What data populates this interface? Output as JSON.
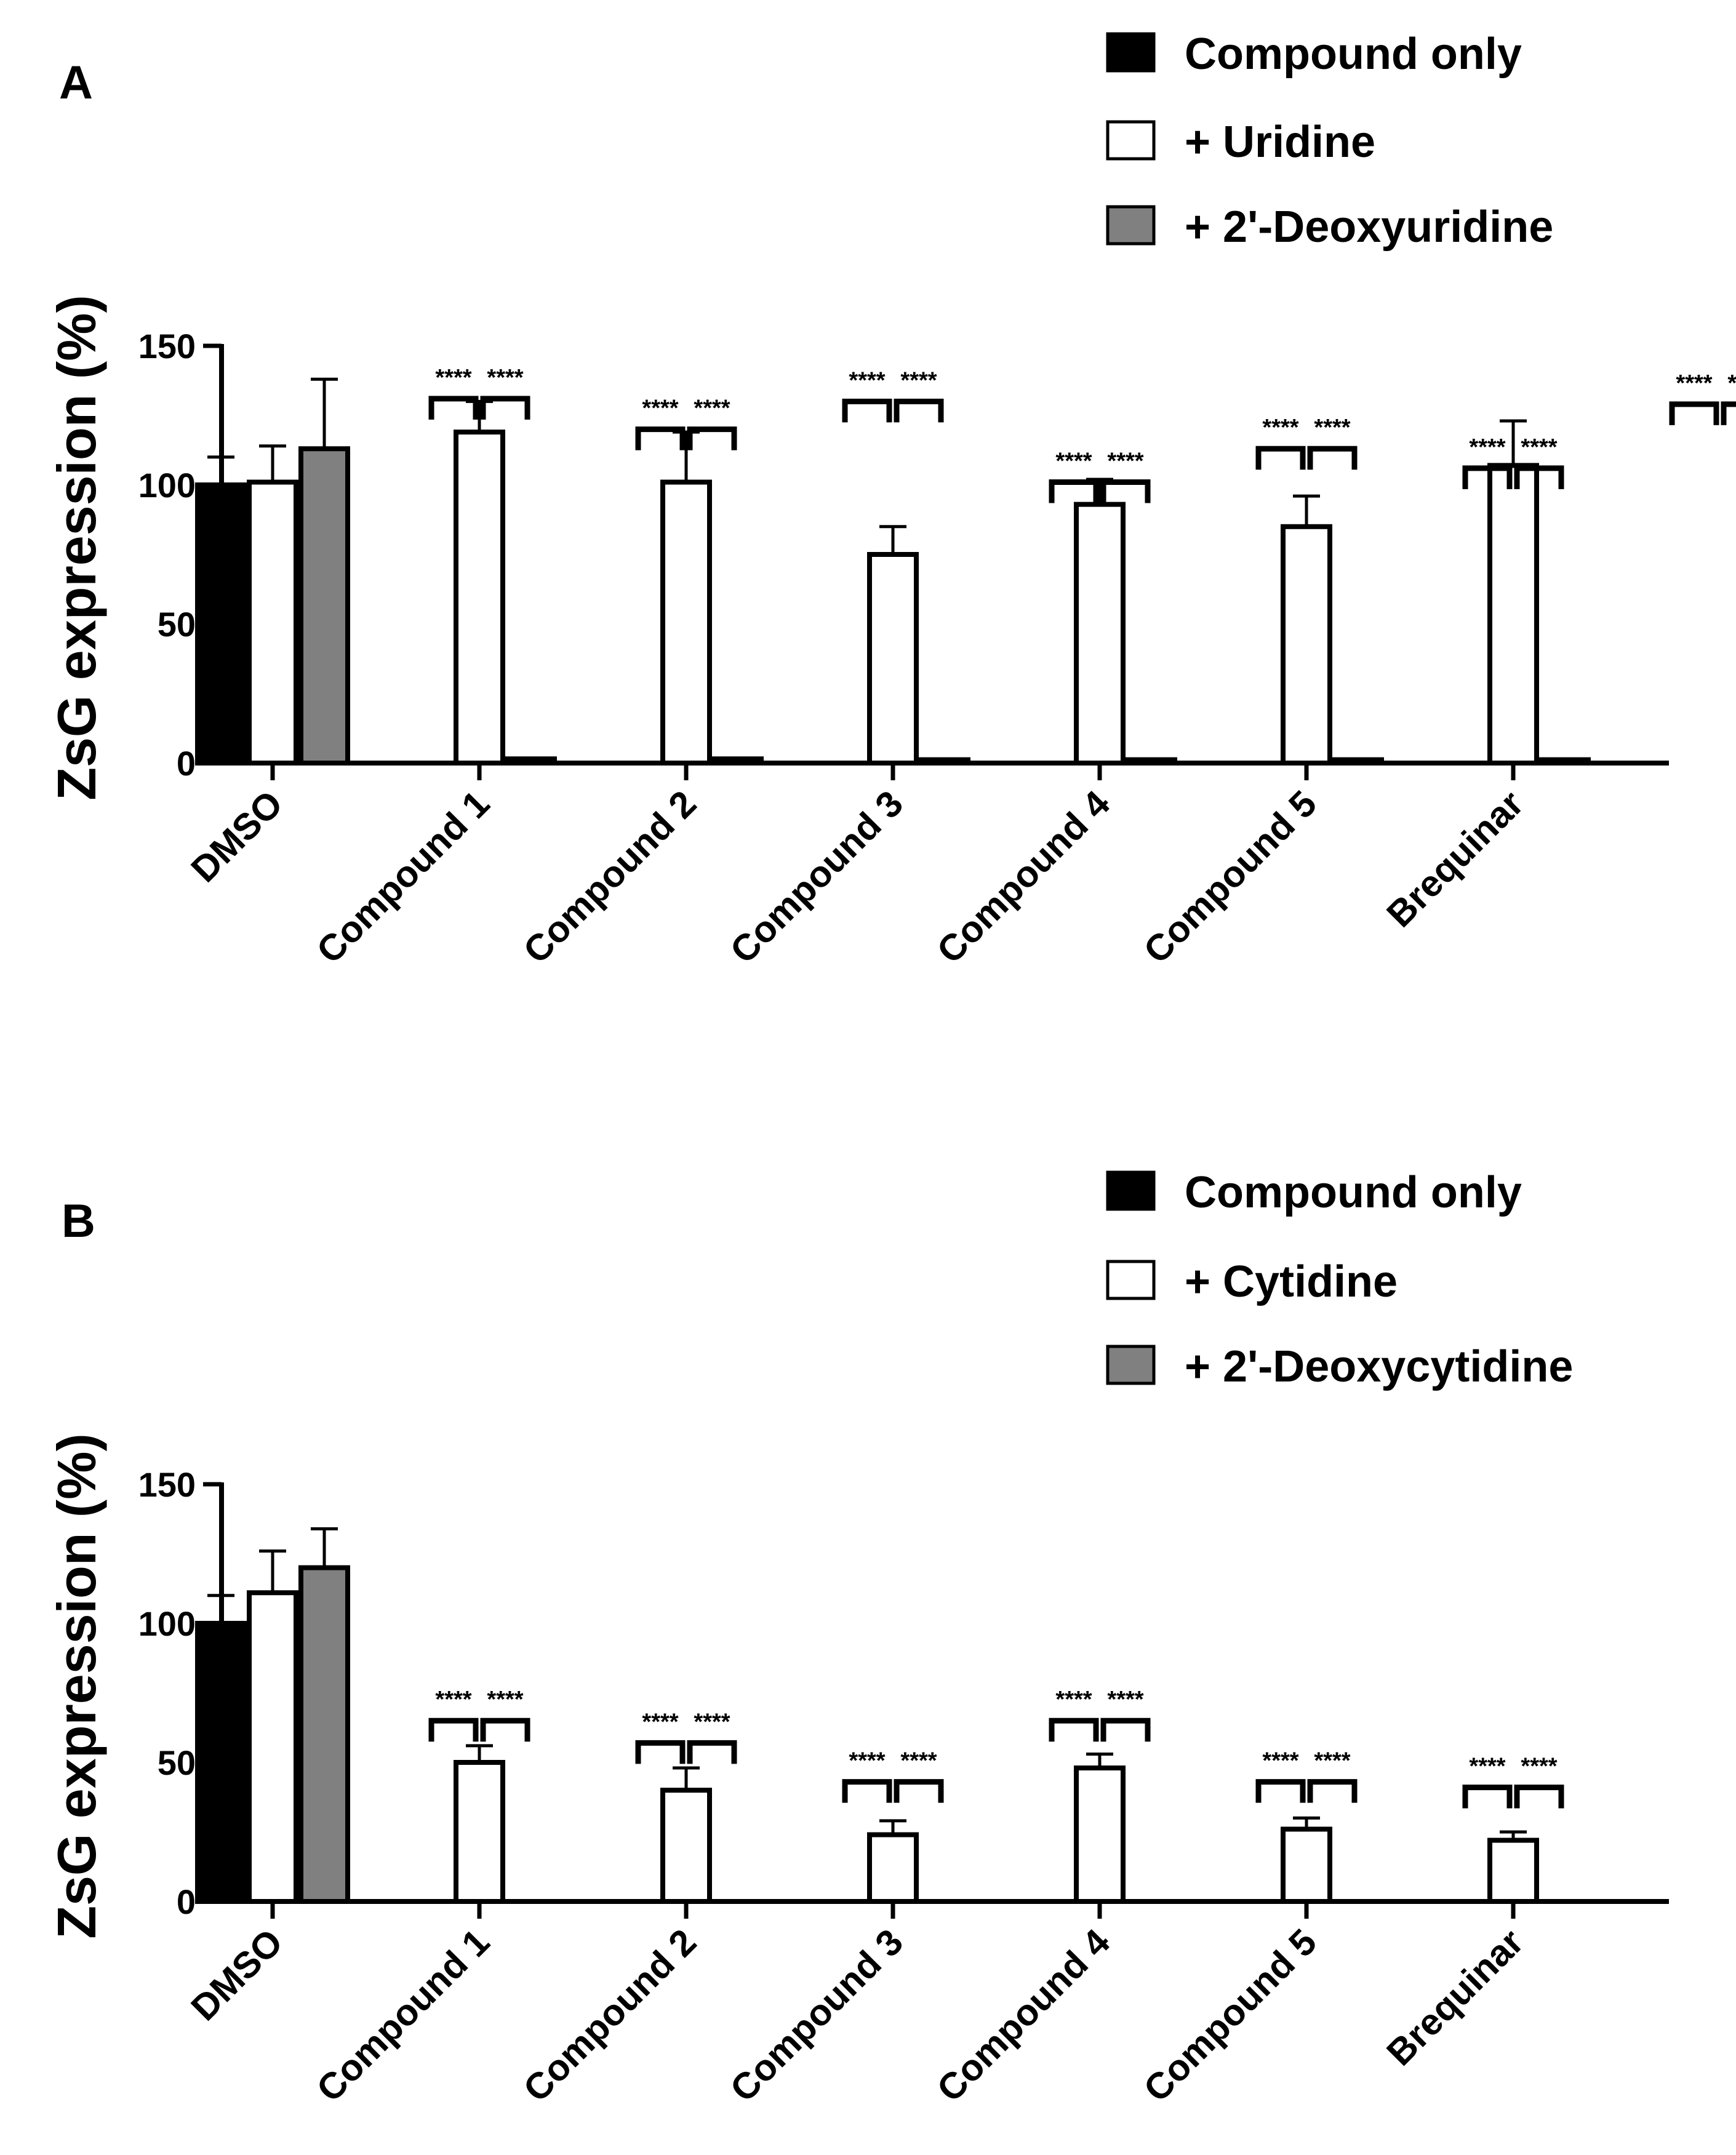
{
  "colors": {
    "compound_only": "#000000",
    "nucleoside": "#ffffff",
    "deoxy_nucleoside": "#808080",
    "axis": "#000000"
  },
  "chart_data": [
    {
      "panel": "A",
      "type": "bar",
      "ylabel": "ZsG expression (%)",
      "ylim": [
        0,
        150
      ],
      "yticks": [
        "0",
        "50",
        "100",
        "150"
      ],
      "categories": [
        "DMSO",
        "Compound 1",
        "Compound 2",
        "Compound 3",
        "Compound 4",
        "Compound 5",
        "Brequinar"
      ],
      "series": [
        {
          "name": "Compound only",
          "color": "#000000",
          "values": [
            100,
            0,
            0,
            0,
            0,
            0,
            0
          ],
          "errors": [
            10,
            0,
            0,
            0,
            0,
            0,
            0
          ]
        },
        {
          "name": "+ Uridine",
          "color": "#ffffff",
          "values": [
            101,
            119,
            101,
            75,
            93,
            85,
            107
          ],
          "errors": [
            13,
            11,
            18,
            10,
            9,
            11,
            16
          ]
        },
        {
          "name": "+ 2'-Deoxyuridine",
          "color": "#808080",
          "values": [
            113,
            1.5,
            1.5,
            1.2,
            1.2,
            1.2,
            1.2
          ],
          "errors": [
            25,
            0,
            0,
            0,
            0,
            0,
            0
          ]
        }
      ],
      "significance": {
        "label": "****",
        "bracket_base": [
          131,
          120,
          130,
          101,
          113,
          106,
          129
        ]
      },
      "legend_position": "top-right"
    },
    {
      "panel": "B",
      "type": "bar",
      "ylabel": "ZsG expression (%)",
      "ylim": [
        0,
        150
      ],
      "yticks": [
        "0",
        "50",
        "100",
        "150"
      ],
      "categories": [
        "DMSO",
        "Compound 1",
        "Compound 2",
        "Compound 3",
        "Compound 4",
        "Compound 5",
        "Brequinar"
      ],
      "series": [
        {
          "name": "Compound only",
          "color": "#000000",
          "values": [
            100,
            0,
            0,
            0,
            0,
            0,
            0
          ],
          "errors": [
            10,
            0,
            0,
            0,
            0,
            0,
            0
          ]
        },
        {
          "name": "+ Cytidine",
          "color": "#ffffff",
          "values": [
            111,
            50,
            40,
            24,
            48,
            26,
            22
          ],
          "errors": [
            15,
            6,
            8,
            5,
            5,
            4,
            3
          ]
        },
        {
          "name": "+ 2'-Deoxycytidine",
          "color": "#808080",
          "values": [
            120,
            0,
            0,
            0,
            0,
            0,
            0
          ],
          "errors": [
            14,
            0,
            0,
            0,
            0,
            0,
            0
          ]
        }
      ],
      "significance": {
        "label": "****",
        "bracket_base": [
          65,
          57,
          43,
          65,
          43,
          41
        ]
      },
      "legend_position": "top-right"
    }
  ]
}
